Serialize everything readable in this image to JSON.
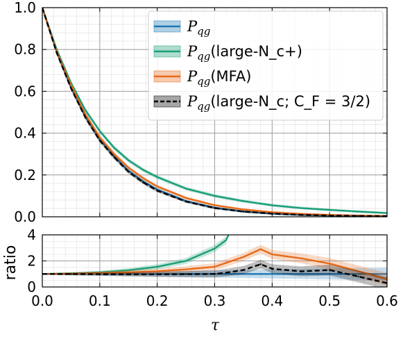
{
  "chart_data": [
    {
      "type": "line",
      "panel": "main",
      "xlabel": "τ",
      "ylabel": "",
      "xlim": [
        0.0,
        0.6
      ],
      "ylim": [
        0.0,
        1.0
      ],
      "xticks": [
        "0.0",
        "0.1",
        "0.2",
        "0.3",
        "0.4",
        "0.5",
        "0.6"
      ],
      "yticks": [
        "0.0",
        "0.2",
        "0.4",
        "0.6",
        "0.8",
        "1.0"
      ],
      "grid": true,
      "legend_position": "top-right",
      "legend": [
        {
          "text": "P_qg",
          "main": "P",
          "sub": "qg",
          "suffix": "",
          "color": "#1f77b4",
          "style": "solid"
        },
        {
          "text": "P_qg(large-N_c+)",
          "main": "P",
          "sub": "qg",
          "suffix": "(large-N_c+)",
          "color": "#1a9e77",
          "style": "solid"
        },
        {
          "text": "P_qg(MFA)",
          "main": "P",
          "sub": "qg",
          "suffix": "(MFA)",
          "color": "#e66a1a",
          "style": "solid"
        },
        {
          "text": "P_qg(large-N_c; C_F = 3/2)",
          "main": "P",
          "sub": "qg",
          "suffix": "(large-N_c; C_F = 3/2)",
          "color": "#000000",
          "style": "dashed"
        }
      ],
      "x": [
        0.0,
        0.025,
        0.05,
        0.075,
        0.1,
        0.125,
        0.15,
        0.175,
        0.2,
        0.25,
        0.3,
        0.35,
        0.4,
        0.45,
        0.5,
        0.55,
        0.6
      ],
      "series": [
        {
          "name": "P_qg",
          "color": "#1f77b4",
          "values": [
            1.0,
            0.79,
            0.62,
            0.48,
            0.37,
            0.29,
            0.22,
            0.17,
            0.13,
            0.075,
            0.043,
            0.025,
            0.015,
            0.009,
            0.006,
            0.004,
            0.003
          ]
        },
        {
          "name": "P_qg(large-N_c+)",
          "color": "#1a9e77",
          "values": [
            1.0,
            0.8,
            0.64,
            0.51,
            0.41,
            0.33,
            0.27,
            0.225,
            0.19,
            0.135,
            0.1,
            0.075,
            0.055,
            0.042,
            0.033,
            0.025,
            0.018
          ]
        },
        {
          "name": "P_qg(MFA)",
          "color": "#e66a1a",
          "values": [
            1.0,
            0.79,
            0.63,
            0.49,
            0.38,
            0.3,
            0.235,
            0.185,
            0.145,
            0.09,
            0.055,
            0.035,
            0.022,
            0.014,
            0.009,
            0.006,
            0.004
          ]
        },
        {
          "name": "P_qg(large-N_c; C_F = 3/2)",
          "color": "#000000",
          "dashed": true,
          "values": [
            1.0,
            0.785,
            0.615,
            0.475,
            0.365,
            0.285,
            0.215,
            0.165,
            0.125,
            0.073,
            0.042,
            0.025,
            0.015,
            0.009,
            0.006,
            0.004,
            0.003
          ]
        }
      ]
    },
    {
      "type": "line",
      "panel": "ratio",
      "xlabel": "τ",
      "ylabel": "ratio",
      "xlim": [
        0.0,
        0.6
      ],
      "ylim": [
        0.0,
        4.0
      ],
      "xticks": [
        "0.0",
        "0.1",
        "0.2",
        "0.3",
        "0.4",
        "0.5",
        "0.6"
      ],
      "yticks": [
        "0",
        "2",
        "4"
      ],
      "grid": true,
      "x": [
        0.0,
        0.05,
        0.1,
        0.15,
        0.2,
        0.25,
        0.3,
        0.32,
        0.35,
        0.38,
        0.4,
        0.45,
        0.5,
        0.55,
        0.6
      ],
      "series": [
        {
          "name": "P_qg",
          "color": "#1f77b4",
          "values": [
            1.0,
            1.0,
            1.0,
            1.0,
            1.0,
            1.0,
            1.0,
            1.0,
            1.0,
            1.0,
            1.0,
            1.0,
            1.0,
            1.0,
            1.0
          ]
        },
        {
          "name": "P_qg(large-N_c+)",
          "color": "#1a9e77",
          "values": [
            1.0,
            1.04,
            1.12,
            1.28,
            1.55,
            2.0,
            2.95,
            3.6,
            null,
            null,
            null,
            null,
            null,
            null,
            null
          ]
        },
        {
          "name": "P_qg(MFA)",
          "color": "#e66a1a",
          "values": [
            1.0,
            1.02,
            1.06,
            1.12,
            1.2,
            1.35,
            1.55,
            1.85,
            2.3,
            2.9,
            2.5,
            2.2,
            1.8,
            1.2,
            0.6
          ]
        },
        {
          "name": "P_qg(large-N_c; C_F = 3/2)",
          "color": "#000000",
          "values": [
            1.0,
            0.99,
            0.98,
            0.97,
            0.97,
            0.98,
            1.0,
            1.1,
            1.3,
            1.75,
            1.4,
            1.2,
            1.3,
            0.8,
            0.3
          ]
        }
      ]
    }
  ]
}
